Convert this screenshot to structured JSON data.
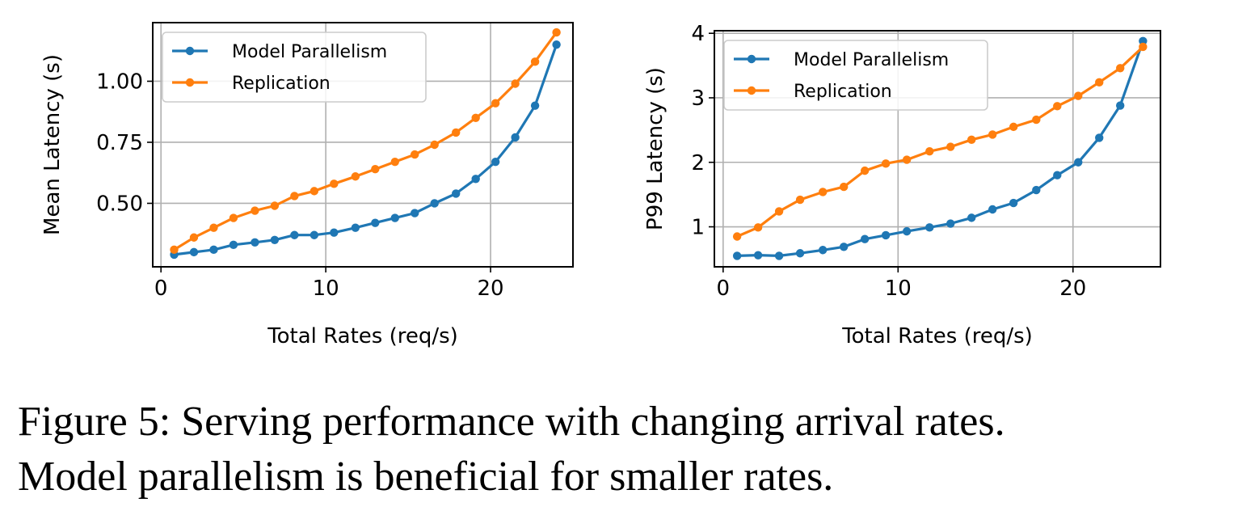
{
  "chart_data": [
    {
      "type": "line",
      "xlabel": "Total Rates (req/s)",
      "ylabel": "Mean Latency (s)",
      "xlim": [
        -0.5,
        25
      ],
      "ylim": [
        0.24,
        1.24
      ],
      "xticks": [
        0,
        10,
        20
      ],
      "xtick_labels": [
        "0",
        "10",
        "20"
      ],
      "yticks": [
        0.5,
        0.75,
        1.0
      ],
      "ytick_labels": [
        "0.50",
        "0.75",
        "1.00"
      ],
      "grid": true,
      "legend_position": "top-left",
      "x": [
        0.8,
        2.0,
        3.2,
        4.4,
        5.7,
        6.9,
        8.1,
        9.3,
        10.5,
        11.8,
        13.0,
        14.2,
        15.4,
        16.6,
        17.9,
        19.1,
        20.3,
        21.5,
        22.7,
        24.0
      ],
      "series": [
        {
          "name": "Model Parallelism",
          "color": "#1f77b4",
          "values": [
            0.29,
            0.3,
            0.31,
            0.33,
            0.34,
            0.35,
            0.37,
            0.37,
            0.38,
            0.4,
            0.42,
            0.44,
            0.46,
            0.5,
            0.54,
            0.6,
            0.67,
            0.77,
            0.9,
            1.15
          ]
        },
        {
          "name": "Replication",
          "color": "#ff7f0e",
          "values": [
            0.31,
            0.36,
            0.4,
            0.44,
            0.47,
            0.49,
            0.53,
            0.55,
            0.58,
            0.61,
            0.64,
            0.67,
            0.7,
            0.74,
            0.79,
            0.85,
            0.91,
            0.99,
            1.08,
            1.2
          ]
        }
      ]
    },
    {
      "type": "line",
      "xlabel": "Total Rates (req/s)",
      "ylabel": "P99 Latency (s)",
      "xlim": [
        -0.5,
        25
      ],
      "ylim": [
        0.38,
        4.04
      ],
      "xticks": [
        0,
        10,
        20
      ],
      "xtick_labels": [
        "0",
        "10",
        "20"
      ],
      "yticks": [
        1,
        2,
        3,
        4
      ],
      "ytick_labels": [
        "1",
        "2",
        "3",
        "4"
      ],
      "grid": true,
      "legend_position": "top-left",
      "x": [
        0.8,
        2.0,
        3.2,
        4.4,
        5.7,
        6.9,
        8.1,
        9.3,
        10.5,
        11.8,
        13.0,
        14.2,
        15.4,
        16.6,
        17.9,
        19.1,
        20.3,
        21.5,
        22.7,
        24.0
      ],
      "series": [
        {
          "name": "Model Parallelism",
          "color": "#1f77b4",
          "values": [
            0.55,
            0.56,
            0.55,
            0.59,
            0.64,
            0.69,
            0.81,
            0.87,
            0.93,
            0.99,
            1.05,
            1.14,
            1.27,
            1.37,
            1.57,
            1.8,
            2.0,
            2.38,
            2.88,
            3.88
          ]
        },
        {
          "name": "Replication",
          "color": "#ff7f0e",
          "values": [
            0.85,
            0.99,
            1.24,
            1.42,
            1.54,
            1.62,
            1.87,
            1.98,
            2.04,
            2.17,
            2.24,
            2.35,
            2.43,
            2.55,
            2.66,
            2.87,
            3.03,
            3.24,
            3.46,
            3.79
          ]
        }
      ]
    }
  ],
  "caption": {
    "line1": "Figure 5: Serving performance with changing arrival rates.",
    "line2": "Model parallelism is beneficial for smaller rates."
  }
}
